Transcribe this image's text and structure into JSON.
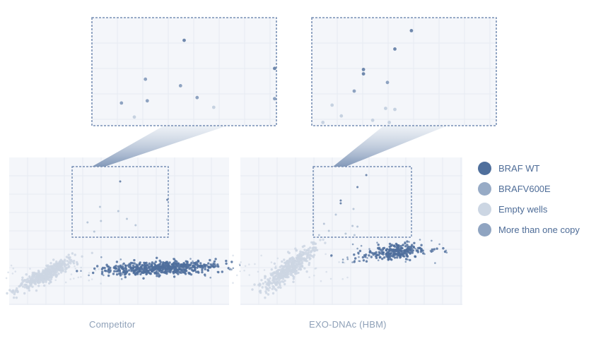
{
  "legend": {
    "items": [
      {
        "label": "BRAF WT",
        "color": "#4f6f9c"
      },
      {
        "label": "BRAFV600E",
        "color": "#97abc6"
      },
      {
        "label": "Empty wells",
        "color": "#ccd6e3"
      },
      {
        "label": "More than one copy",
        "color": "#8fa4c1"
      }
    ]
  },
  "chart_data": {
    "type": "scatter",
    "grid": true,
    "legend_position": "right",
    "panels": [
      {
        "caption": "Competitor",
        "clusters": [
          {
            "class": "Empty wells",
            "x_center": 0.17,
            "y_center": 0.21,
            "count": 450
          },
          {
            "class": "BRAF WT",
            "x_center": 0.7,
            "y_center": 0.25,
            "count": 520
          }
        ],
        "zoom_points": [
          {
            "x": 0.5,
            "y": 0.79
          },
          {
            "x": 0.29,
            "y": 0.43
          },
          {
            "x": 0.48,
            "y": 0.37
          },
          {
            "x": 0.3,
            "y": 0.23
          },
          {
            "x": 0.66,
            "y": 0.17
          },
          {
            "x": 0.57,
            "y": 0.26
          },
          {
            "x": 0.99,
            "y": 0.53
          },
          {
            "x": 0.99,
            "y": 0.25
          },
          {
            "x": 0.16,
            "y": 0.21
          },
          {
            "x": 0.23,
            "y": 0.08
          }
        ]
      },
      {
        "caption": "EXO-DNAc (HBM)",
        "clusters": [
          {
            "class": "Empty wells",
            "x_center": 0.22,
            "y_center": 0.25,
            "count": 450
          },
          {
            "class": "BRAF WT",
            "x_center": 0.7,
            "y_center": 0.36,
            "count": 230
          }
        ],
        "zoom_points": [
          {
            "x": 0.54,
            "y": 0.88
          },
          {
            "x": 0.45,
            "y": 0.71
          },
          {
            "x": 0.28,
            "y": 0.52
          },
          {
            "x": 0.28,
            "y": 0.48
          },
          {
            "x": 0.41,
            "y": 0.4
          },
          {
            "x": 0.23,
            "y": 0.32
          },
          {
            "x": 0.11,
            "y": 0.19
          },
          {
            "x": 0.4,
            "y": 0.16
          },
          {
            "x": 0.45,
            "y": 0.15
          },
          {
            "x": 0.16,
            "y": 0.09
          },
          {
            "x": 0.33,
            "y": 0.05
          },
          {
            "x": 0.42,
            "y": 0.03
          },
          {
            "x": 0.06,
            "y": 0.03
          }
        ]
      }
    ]
  }
}
